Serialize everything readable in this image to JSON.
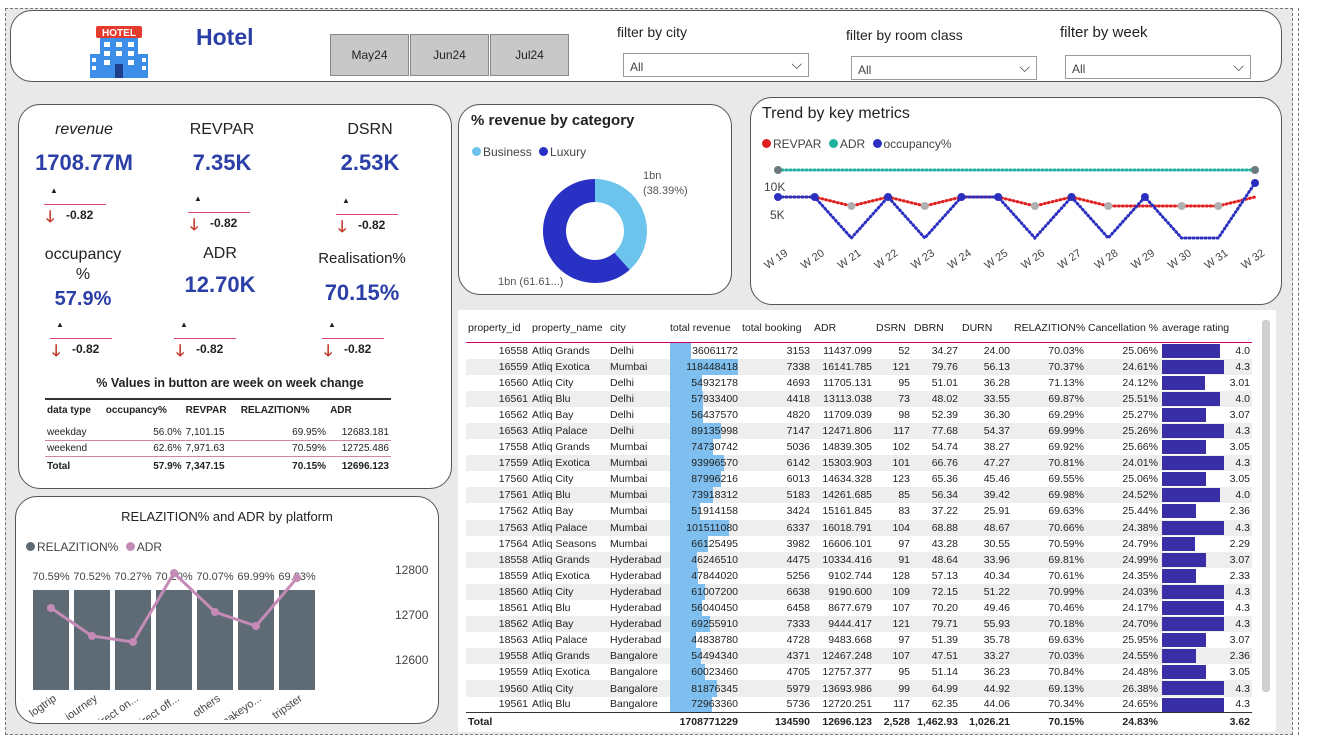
{
  "header": {
    "title": "Hotel",
    "logo_text": "HOTEL",
    "months": [
      "May24",
      "Jun24",
      "Jul24"
    ],
    "filters": [
      {
        "label": "filter by city",
        "value": "All"
      },
      {
        "label": "filter by room class",
        "value": "All"
      },
      {
        "label": "filter by week",
        "value": "All"
      }
    ]
  },
  "kpis": [
    {
      "label": "revenue",
      "value": "1708.77M",
      "change": "-0.82"
    },
    {
      "label": "REVPAR",
      "value": "7.35K",
      "change": "-0.82"
    },
    {
      "label": "DSRN",
      "value": "2.53K",
      "change": "-0.82"
    },
    {
      "label": "occupancy %",
      "value": "57.9%",
      "change": "-0.82"
    },
    {
      "label": "ADR",
      "value": "12.70K",
      "change": "-0.82"
    },
    {
      "label": "Realisation%",
      "value": "70.15%",
      "change": "-0.82"
    }
  ],
  "kpi_note": "% Values in button are week on week change",
  "day_type_table": {
    "columns": [
      "data type",
      "occupancy%",
      "REVPAR",
      "RELAZITION%",
      "ADR"
    ],
    "rows": [
      [
        "weekday",
        "56.0%",
        "7,101.15",
        "69.95%",
        "12683.181"
      ],
      [
        "weekend",
        "62.6%",
        "7,971.63",
        "70.59%",
        "12725.486"
      ]
    ],
    "total": [
      "Total",
      "57.9%",
      "7,347.15",
      "70.15%",
      "12696.123"
    ]
  },
  "donut": {
    "title": "% revenue by category",
    "legend": [
      "Business",
      "Luxury"
    ],
    "label_business": "1bn",
    "label_business_pct": "(38.39%)",
    "label_luxury": "1bn (61.61...)"
  },
  "trend": {
    "title": "Trend by key metrics",
    "legend": [
      "REVPAR",
      "ADR",
      "occupancy%"
    ],
    "yticks": [
      "10K",
      "5K"
    ],
    "weeks": [
      "W 19",
      "W 20",
      "W 21",
      "W 22",
      "W 23",
      "W 24",
      "W 25",
      "W 26",
      "W 27",
      "W 28",
      "W 29",
      "W 30",
      "W 31",
      "W 32"
    ]
  },
  "platform": {
    "title": "RELAZITION% and ADR by platform",
    "legend": [
      "RELAZITION%",
      "ADR"
    ],
    "yticks": [
      "12800",
      "12700",
      "12600"
    ],
    "categories": [
      "logtrip",
      "journey",
      "direct on...",
      "direct off...",
      "others",
      "makeyo...",
      "tripster"
    ],
    "bar_labels": [
      "70.59%",
      "70.52%",
      "70.27%",
      "70.20%",
      "70.07%",
      "69.99%",
      "69.63%"
    ]
  },
  "main_table": {
    "columns": [
      "property_id",
      "property_name",
      "city",
      "total revenue",
      "total booking",
      "ADR",
      "DSRN",
      "DBRN",
      "DURN",
      "RELAZITION%",
      "Cancellation %",
      "average rating"
    ],
    "rows": [
      [
        "16558",
        "Atliq Grands",
        "Delhi",
        "36061172",
        "3153",
        "11437.099",
        "52",
        "34.27",
        "24.00",
        "70.03%",
        "25.06%",
        "4.0"
      ],
      [
        "16559",
        "Atliq Exotica",
        "Mumbai",
        "118448418",
        "7338",
        "16141.785",
        "121",
        "79.76",
        "56.13",
        "70.37%",
        "24.61%",
        "4.3"
      ],
      [
        "16560",
        "Atliq City",
        "Delhi",
        "54932178",
        "4693",
        "11705.131",
        "95",
        "51.01",
        "36.28",
        "71.13%",
        "24.12%",
        "3.01"
      ],
      [
        "16561",
        "Atliq Blu",
        "Delhi",
        "57933400",
        "4418",
        "13113.038",
        "73",
        "48.02",
        "33.55",
        "69.87%",
        "25.51%",
        "4.0"
      ],
      [
        "16562",
        "Atliq Bay",
        "Delhi",
        "56437570",
        "4820",
        "11709.039",
        "98",
        "52.39",
        "36.30",
        "69.29%",
        "25.27%",
        "3.07"
      ],
      [
        "16563",
        "Atliq Palace",
        "Delhi",
        "89135998",
        "7147",
        "12471.806",
        "117",
        "77.68",
        "54.37",
        "69.99%",
        "25.26%",
        "4.3"
      ],
      [
        "17558",
        "Atliq Grands",
        "Mumbai",
        "74730742",
        "5036",
        "14839.305",
        "102",
        "54.74",
        "38.27",
        "69.92%",
        "25.66%",
        "3.05"
      ],
      [
        "17559",
        "Atliq Exotica",
        "Mumbai",
        "93996570",
        "6142",
        "15303.903",
        "101",
        "66.76",
        "47.27",
        "70.81%",
        "24.01%",
        "4.3"
      ],
      [
        "17560",
        "Atliq City",
        "Mumbai",
        "87996216",
        "6013",
        "14634.328",
        "123",
        "65.36",
        "45.46",
        "69.55%",
        "25.06%",
        "3.05"
      ],
      [
        "17561",
        "Atliq Blu",
        "Mumbai",
        "73918312",
        "5183",
        "14261.685",
        "85",
        "56.34",
        "39.42",
        "69.98%",
        "24.52%",
        "4.0"
      ],
      [
        "17562",
        "Atliq Bay",
        "Mumbai",
        "51914158",
        "3424",
        "15161.845",
        "83",
        "37.22",
        "25.91",
        "69.63%",
        "25.44%",
        "2.36"
      ],
      [
        "17563",
        "Atliq Palace",
        "Mumbai",
        "101511080",
        "6337",
        "16018.791",
        "104",
        "68.88",
        "48.67",
        "70.66%",
        "24.38%",
        "4.3"
      ],
      [
        "17564",
        "Atliq Seasons",
        "Mumbai",
        "66125495",
        "3982",
        "16606.101",
        "97",
        "43.28",
        "30.55",
        "70.59%",
        "24.79%",
        "2.29"
      ],
      [
        "18558",
        "Atliq Grands",
        "Hyderabad",
        "46246510",
        "4475",
        "10334.416",
        "91",
        "48.64",
        "33.96",
        "69.81%",
        "24.99%",
        "3.07"
      ],
      [
        "18559",
        "Atliq Exotica",
        "Hyderabad",
        "47844020",
        "5256",
        "9102.744",
        "128",
        "57.13",
        "40.34",
        "70.61%",
        "24.35%",
        "2.33"
      ],
      [
        "18560",
        "Atliq City",
        "Hyderabad",
        "61007200",
        "6638",
        "9190.600",
        "109",
        "72.15",
        "51.22",
        "70.99%",
        "24.03%",
        "4.3"
      ],
      [
        "18561",
        "Atliq Blu",
        "Hyderabad",
        "56040450",
        "6458",
        "8677.679",
        "107",
        "70.20",
        "49.46",
        "70.46%",
        "24.17%",
        "4.3"
      ],
      [
        "18562",
        "Atliq Bay",
        "Hyderabad",
        "69255910",
        "7333",
        "9444.417",
        "121",
        "79.71",
        "55.93",
        "70.18%",
        "24.70%",
        "4.3"
      ],
      [
        "18563",
        "Atliq Palace",
        "Hyderabad",
        "44838780",
        "4728",
        "9483.668",
        "97",
        "51.39",
        "35.78",
        "69.63%",
        "25.95%",
        "3.07"
      ],
      [
        "19558",
        "Atliq Grands",
        "Bangalore",
        "54494340",
        "4371",
        "12467.248",
        "107",
        "47.51",
        "33.27",
        "70.03%",
        "24.55%",
        "2.36"
      ],
      [
        "19559",
        "Atliq Exotica",
        "Bangalore",
        "60023460",
        "4705",
        "12757.377",
        "95",
        "51.14",
        "36.23",
        "70.84%",
        "24.48%",
        "3.05"
      ],
      [
        "19560",
        "Atliq City",
        "Bangalore",
        "81876345",
        "5979",
        "13693.986",
        "99",
        "64.99",
        "44.92",
        "69.13%",
        "26.38%",
        "4.3"
      ],
      [
        "19561",
        "Atliq Blu",
        "Bangalore",
        "72963360",
        "5736",
        "12720.251",
        "117",
        "62.35",
        "44.06",
        "70.34%",
        "24.65%",
        "4.3"
      ]
    ],
    "total": [
      "Total",
      "",
      "",
      "1708771229",
      "134590",
      "12696.123",
      "2,528",
      "1,462.93",
      "1,026.21",
      "70.15%",
      "24.83%",
      "3.62"
    ]
  },
  "colors": {
    "accent": "#2b3fa6",
    "business": "#6cc3ec",
    "luxury": "#2930c4",
    "revpar": "#e02020",
    "adr_line": "#20b2a0",
    "occupancy": "#2b2fc0",
    "bar": "#5e6b75",
    "adr_pink": "#c58bb7",
    "rating_bar": "#3a2ea6"
  }
}
